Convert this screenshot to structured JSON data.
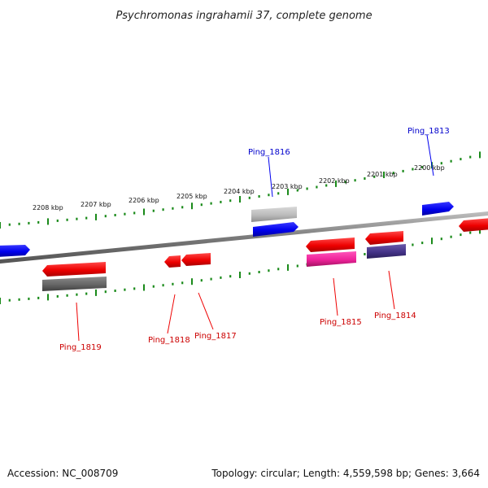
{
  "title": "Psychromonas ingrahamii 37, complete genome",
  "footer": {
    "accession": "Accession: NC_008709",
    "summary": "Topology: circular; Length: 4,559,598 bp; Genes: 3,664"
  },
  "scale_labels": [
    "2208 kbp",
    "2207 kbp",
    "2206 kbp",
    "2205 kbp",
    "2204 kbp",
    "2203 kbp",
    "2202 kbp",
    "2201 kbp",
    "2200 kbp"
  ],
  "colors": {
    "forward_gene": "#0000ee",
    "reverse_gene": "#ee0000",
    "backbone": "#888888",
    "ticks": "#1a8a1a",
    "pseudo_gray": "#666666",
    "highlight_magenta": "#ee2299",
    "highlight_purple": "#443388"
  },
  "gene_labels": {
    "top": [
      "Ping_1816",
      "Ping_1813"
    ],
    "bottom": [
      "Ping_1819",
      "Ping_1818",
      "Ping_1817",
      "Ping_1815",
      "Ping_1814"
    ]
  }
}
